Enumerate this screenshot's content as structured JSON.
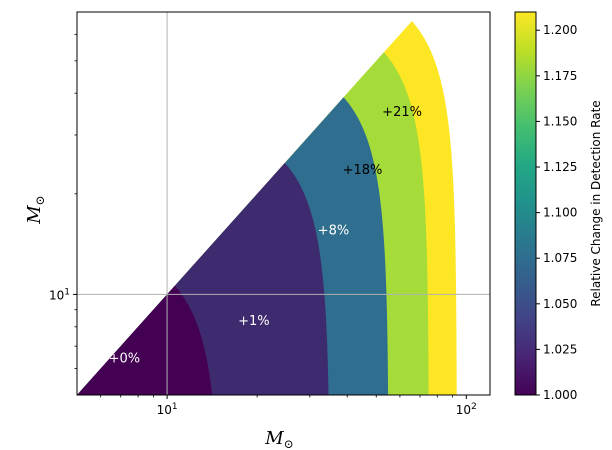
{
  "chart_data": {
    "type": "heatmap",
    "title": "",
    "xlabel": "M_⊙",
    "ylabel": "M_⊙",
    "x_scale": "log",
    "y_scale": "log",
    "xlim": [
      5,
      120
    ],
    "ylim": [
      5,
      70
    ],
    "x_ticks": [
      {
        "value": 10,
        "base": "10",
        "exp": "1"
      },
      {
        "value": 100,
        "base": "10",
        "exp": "2"
      }
    ],
    "y_ticks": [
      {
        "value": 10,
        "base": "10",
        "exp": "1"
      }
    ],
    "grid_lines": {
      "x": [
        10
      ],
      "y": [
        10
      ]
    },
    "regions": [
      {
        "label": "+0%",
        "value": 1.0,
        "outer_radius": 15,
        "color": "#440154",
        "label_color": "#ffffff",
        "label_pos": [
          7.2,
          6.4
        ]
      },
      {
        "label": "+1%",
        "value": 1.01,
        "outer_radius": 35,
        "color": "#3e2a6e",
        "label_color": "#ffffff",
        "label_pos": [
          19.5,
          8.3
        ]
      },
      {
        "label": "+8%",
        "value": 1.08,
        "outer_radius": 55,
        "color": "#2f6e8e",
        "label_color": "#ffffff",
        "label_pos": [
          36,
          15.5
        ]
      },
      {
        "label": "+18%",
        "value": 1.18,
        "outer_radius": 75,
        "color": "#a6dc3a",
        "label_color": "#000000",
        "label_pos": [
          45,
          23.5
        ]
      },
      {
        "label": "+21%",
        "value": 1.21,
        "outer_radius": 93,
        "color": "#fde725",
        "label_color": "#000000",
        "label_pos": [
          61,
          35
        ]
      }
    ],
    "colorbar": {
      "label": "Relative Change in Detection Rate",
      "range": [
        1.0,
        1.21
      ],
      "ticks": [
        "1.000",
        "1.025",
        "1.050",
        "1.075",
        "1.100",
        "1.125",
        "1.150",
        "1.175",
        "1.200"
      ],
      "colormap": "viridis"
    }
  }
}
